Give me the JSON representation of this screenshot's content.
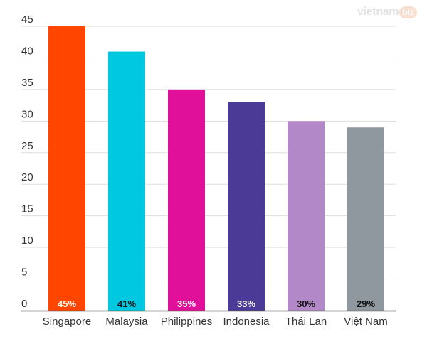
{
  "watermark": {
    "brand": "vietnam",
    "badge": "biz"
  },
  "chart_data": {
    "type": "bar",
    "title": "",
    "xlabel": "",
    "ylabel": "",
    "ylim": [
      0,
      45
    ],
    "yticks": [
      0,
      5,
      10,
      15,
      20,
      25,
      30,
      35,
      40,
      45
    ],
    "grid": true,
    "legend": "none",
    "categories": [
      "Singapore",
      "Malaysia",
      "Philippines",
      "Indonesia",
      "Thái Lan",
      "Việt Nam"
    ],
    "values": [
      45,
      41,
      35,
      33,
      30,
      29
    ],
    "data_labels": [
      "45%",
      "41%",
      "35%",
      "33%",
      "30%",
      "29%"
    ],
    "colors": [
      "#ff4500",
      "#00c8e0",
      "#e0109a",
      "#4b3a96",
      "#b388c8",
      "#8f989e"
    ],
    "label_colors": [
      "#ffffff",
      "#111111",
      "#ffffff",
      "#ffffff",
      "#111111",
      "#111111"
    ],
    "gridline_color": "#dddddd",
    "axis_color": "#555555"
  }
}
